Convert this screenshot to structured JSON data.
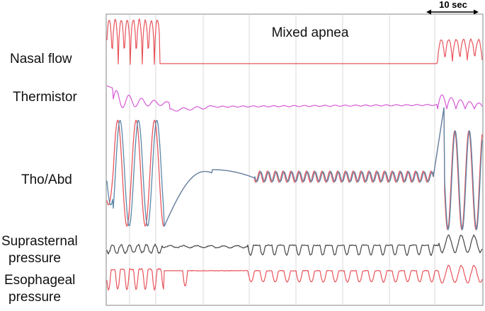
{
  "chart_data": {
    "type": "line",
    "title": "Mixed apnea",
    "scale_bar": "10 sec",
    "series": [
      {
        "name": "Nasal flow",
        "color": "#e8545b"
      },
      {
        "name": "Thermistor",
        "color": "#d65ad6"
      },
      {
        "name": "Tho/Abd",
        "color": "#5b87a8",
        "color2": "#e8545b"
      },
      {
        "name": "Suprasternal pressure",
        "label_lines": [
          "Suprasternal",
          "pressure"
        ],
        "color": "#444444"
      },
      {
        "name": "Esophageal pressure",
        "label_lines": [
          "Esophageal",
          "pressure"
        ],
        "color": "#e8545b"
      }
    ]
  }
}
